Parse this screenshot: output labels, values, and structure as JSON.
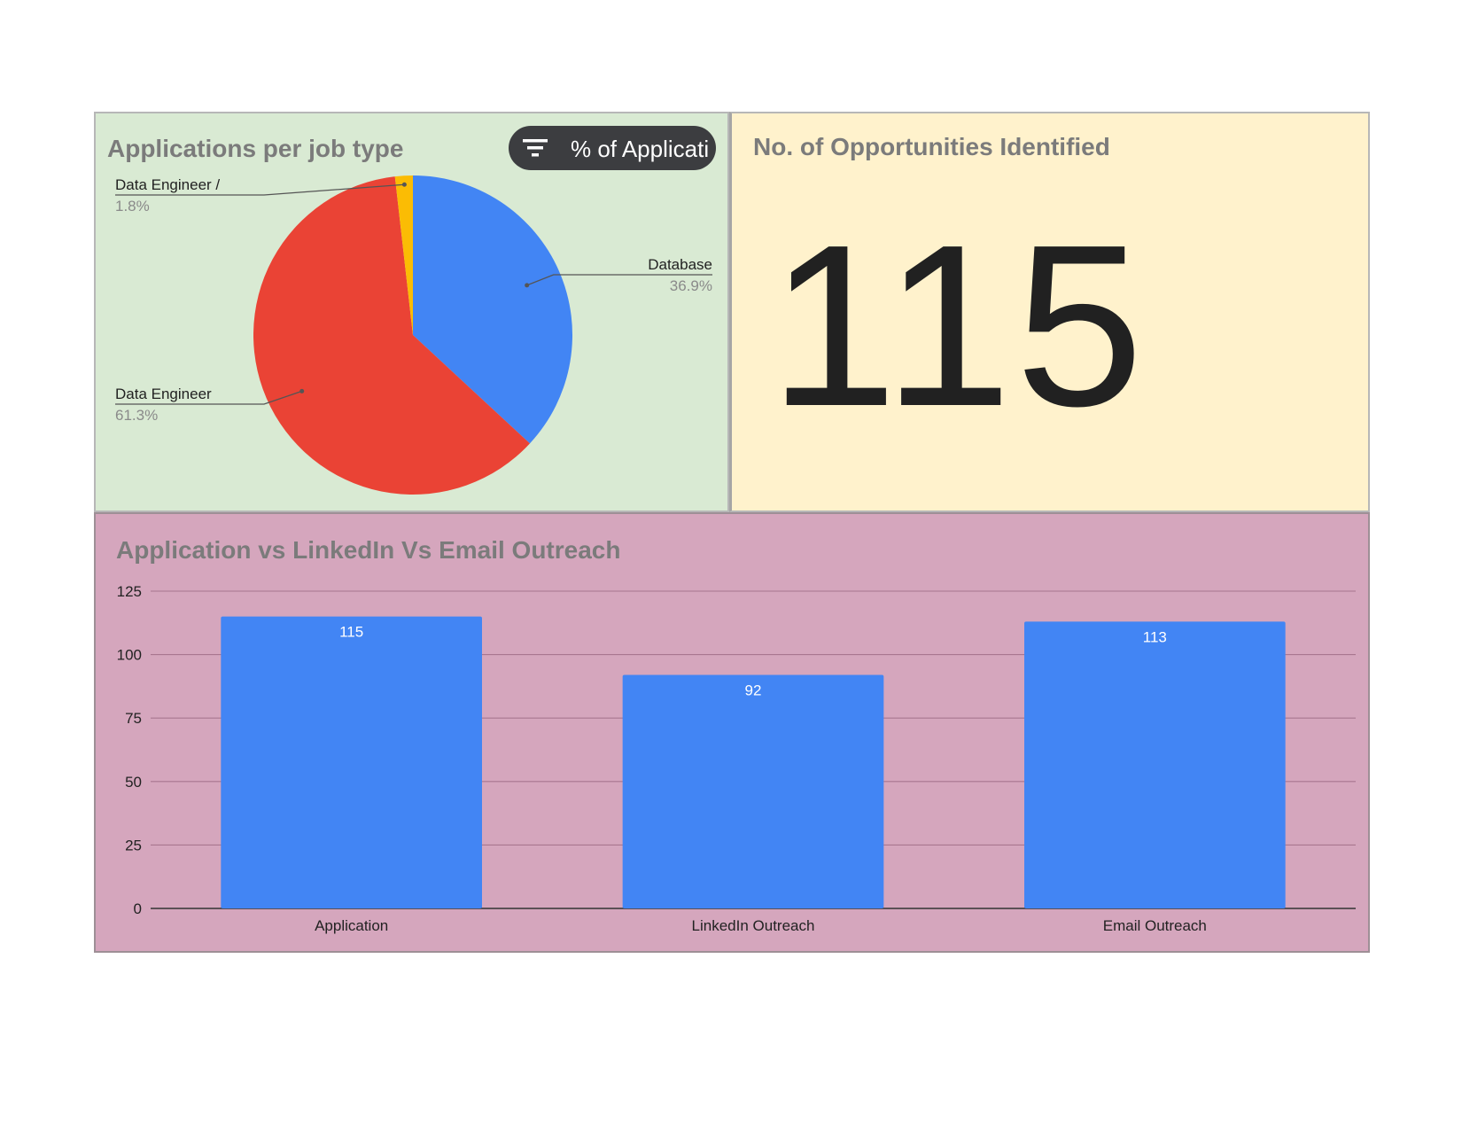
{
  "pie_panel": {
    "title": "Applications per job type",
    "filter_chip_label": "% of Applicati"
  },
  "kpi_panel": {
    "title": "No. of Opportunities Identified",
    "value": "115"
  },
  "bar_panel": {
    "title": "Application vs LinkedIn Vs Email Outreach"
  },
  "chart_data": [
    {
      "type": "pie",
      "title": "Applications per job type",
      "slices": [
        {
          "label": "Database",
          "percent_label": "36.9%",
          "value": 36.9,
          "color": "#4285f4"
        },
        {
          "label": "Data Engineer",
          "percent_label": "61.3%",
          "value": 61.3,
          "color": "#ea4335"
        },
        {
          "label": "Data Engineer /",
          "percent_label": "1.8%",
          "value": 1.8,
          "color": "#fbbc04"
        }
      ]
    },
    {
      "type": "bar",
      "title": "Application vs LinkedIn Vs Email Outreach",
      "categories": [
        "Application",
        "LinkedIn Outreach",
        "Email Outreach"
      ],
      "values": [
        115,
        92,
        113
      ],
      "data_labels": [
        "115",
        "92",
        "113"
      ],
      "ylim": [
        0,
        125
      ],
      "yticks": [
        "0",
        "25",
        "50",
        "75",
        "100",
        "125"
      ],
      "grid": true,
      "bar_color": "#4285f4"
    }
  ]
}
